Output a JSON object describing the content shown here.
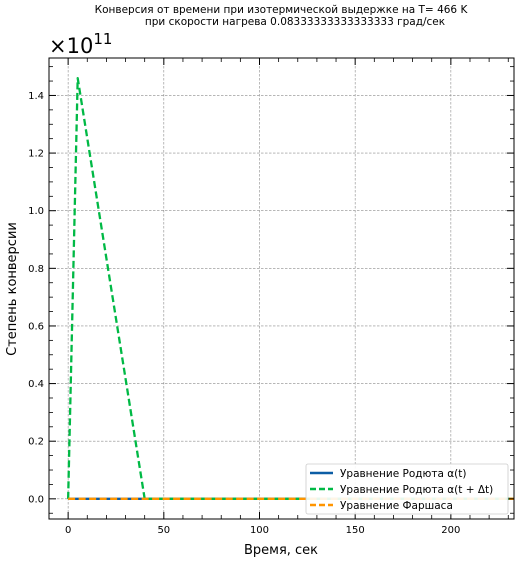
{
  "chart_data": {
    "type": "line",
    "title_lines": [
      "Конверсия от времени при изотермической выдержке на T= 466 K",
      "при скорости нагрева 0.08333333333333333 град/сек"
    ],
    "xlabel": "Время, сек",
    "ylabel": "Степень конверсии",
    "y_offset_text": "×10",
    "y_offset_exponent": "11",
    "y_scale_factor": 100000000000,
    "xlim": [
      -10,
      233
    ],
    "ylim": [
      -0.07,
      1.53
    ],
    "x_ticks": [
      0,
      50,
      100,
      150,
      200
    ],
    "x_tick_labels": [
      "0",
      "50",
      "100",
      "150",
      "200"
    ],
    "y_ticks": [
      0.0,
      0.2,
      0.4,
      0.6,
      0.8,
      1.0,
      1.2,
      1.4
    ],
    "y_tick_labels": [
      "0.0",
      "0.2",
      "0.4",
      "0.6",
      "0.8",
      "1.0",
      "1.2",
      "1.4"
    ],
    "grid": true,
    "legend_position": "bottom-right",
    "series": [
      {
        "name": "Уравнение Родюта α(t)",
        "color": "#0c5da5",
        "style": "solid",
        "x": [
          0,
          233
        ],
        "y": [
          0,
          0
        ]
      },
      {
        "name": "Уравнение Родюта α(t + Δt)",
        "color": "#00b945",
        "style": "dashed",
        "x": [
          0,
          5,
          40,
          233
        ],
        "y": [
          0,
          1.46,
          0.0,
          0.0
        ]
      },
      {
        "name": "Уравнение Фаршаса",
        "color": "#ff9500",
        "style": "dashed",
        "x": [
          0,
          233
        ],
        "y": [
          0,
          0
        ]
      }
    ]
  }
}
